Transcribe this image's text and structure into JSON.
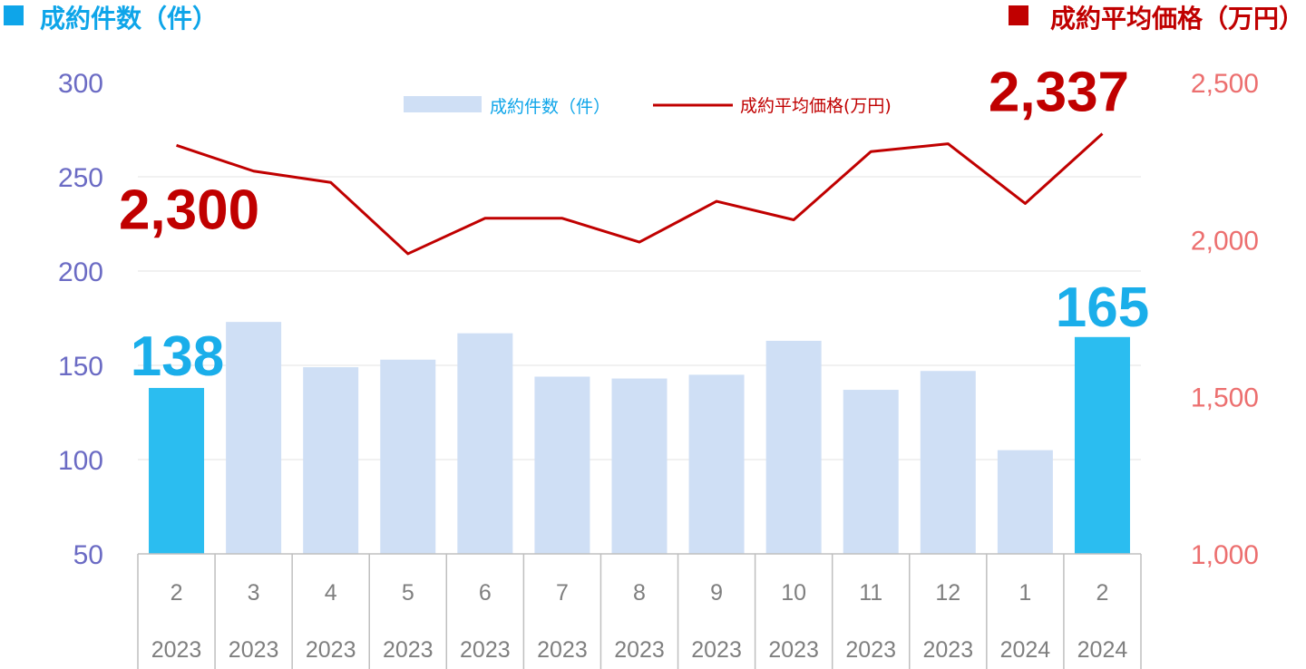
{
  "header": {
    "left_title": "成約件数（件）",
    "right_title": "成約平均価格（万円）"
  },
  "colors": {
    "bar_default": "#cfdff5",
    "bar_highlight": "#2bbdf0",
    "line": "#c00000",
    "left_axis": "#6b6bc4",
    "right_axis": "#ec6f6f",
    "left_header": "#0ea5e9",
    "right_header": "#c00000"
  },
  "chart_data": {
    "type": "bar",
    "left_axis": {
      "ylim": [
        50,
        300
      ],
      "ticks": [
        "300",
        "250",
        "200",
        "150",
        "100",
        "50"
      ]
    },
    "right_axis": {
      "ylim": [
        1000,
        2500
      ],
      "ticks": [
        "2,500",
        "2,000",
        "1,500",
        "1,000"
      ]
    },
    "categories": [
      {
        "month": "2",
        "year": "2023"
      },
      {
        "month": "3",
        "year": "2023"
      },
      {
        "month": "4",
        "year": "2023"
      },
      {
        "month": "5",
        "year": "2023"
      },
      {
        "month": "6",
        "year": "2023"
      },
      {
        "month": "7",
        "year": "2023"
      },
      {
        "month": "8",
        "year": "2023"
      },
      {
        "month": "9",
        "year": "2023"
      },
      {
        "month": "10",
        "year": "2023"
      },
      {
        "month": "11",
        "year": "2023"
      },
      {
        "month": "12",
        "year": "2023"
      },
      {
        "month": "1",
        "year": "2024"
      },
      {
        "month": "2",
        "year": "2024"
      }
    ],
    "series": [
      {
        "name": "成約件数（件）",
        "type": "bar",
        "axis": "left",
        "values": [
          138,
          173,
          149,
          153,
          167,
          144,
          143,
          145,
          163,
          137,
          147,
          105,
          165
        ],
        "highlight": [
          true,
          false,
          false,
          false,
          false,
          false,
          false,
          false,
          false,
          false,
          false,
          false,
          true
        ]
      },
      {
        "name": "成約平均価格(万円)",
        "type": "line",
        "axis": "right",
        "values": [
          2300,
          2218,
          2182,
          1955,
          2068,
          2068,
          1992,
          2122,
          2063,
          2280,
          2305,
          2115,
          2337
        ]
      }
    ],
    "annotations": [
      {
        "text": "2,300",
        "series": 1,
        "index": 0
      },
      {
        "text": "2,337",
        "series": 1,
        "index": 12
      },
      {
        "text": "138",
        "series": 0,
        "index": 0
      },
      {
        "text": "165",
        "series": 0,
        "index": 12
      }
    ],
    "grid": true,
    "legend": "top-center"
  }
}
